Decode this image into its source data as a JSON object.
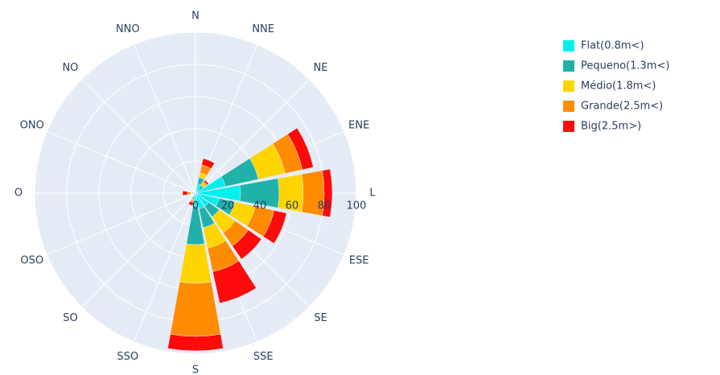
{
  "chart_data": {
    "type": "barpolar",
    "categories": [
      "N",
      "NNE",
      "NE",
      "ENE",
      "L",
      "ESE",
      "SE",
      "SSE",
      "S",
      "SSO",
      "SO",
      "OSO",
      "O",
      "ONO",
      "NO",
      "NNO"
    ],
    "series": [
      {
        "name": "Flat(0.8m<)",
        "color": "#00f0f0",
        "values": [
          1,
          6,
          3,
          19,
          28,
          15,
          10,
          10,
          8,
          3,
          1,
          0,
          1,
          0,
          0,
          0
        ]
      },
      {
        "name": "Pequeno(1.3m<)",
        "color": "#20b2aa",
        "values": [
          0,
          4,
          3,
          21,
          24,
          10,
          8,
          12,
          24,
          1,
          0,
          0,
          1,
          0,
          0,
          0
        ]
      },
      {
        "name": "Médio(1.8m<)",
        "color": "#ffd500",
        "values": [
          0,
          3,
          2,
          17,
          15,
          13,
          12,
          13,
          24,
          1,
          0,
          0,
          1,
          0,
          0,
          0
        ]
      },
      {
        "name": "Grande(2.5m<)",
        "color": "#ff8c00",
        "values": [
          0,
          5,
          1,
          11,
          13,
          12,
          10,
          15,
          33,
          1,
          0,
          0,
          2,
          0,
          0,
          0
        ]
      },
      {
        "name": "Big(2.5m>)",
        "color": "#ff0a0a",
        "values": [
          0,
          4,
          1,
          7,
          5,
          8,
          10,
          20,
          9,
          2,
          0,
          0,
          3,
          0,
          0,
          0
        ]
      }
    ],
    "rlim": [
      0,
      100
    ],
    "rticks": [
      0,
      20,
      40,
      60,
      80,
      100
    ],
    "grid": true
  }
}
